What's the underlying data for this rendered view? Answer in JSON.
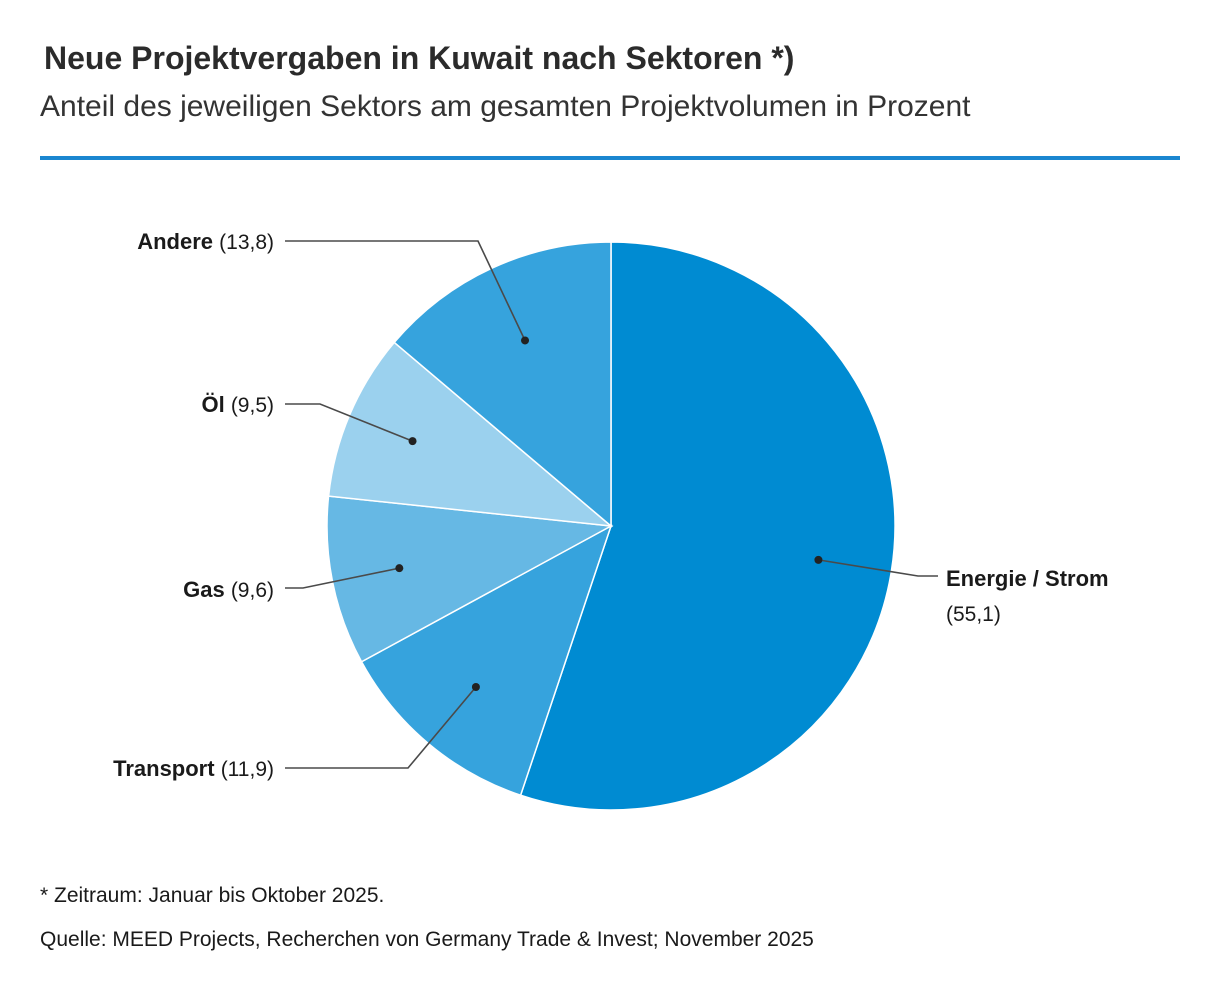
{
  "header": {
    "title": "Neue Projektvergaben in Kuwait nach Sektoren *)",
    "subtitle": "Anteil des jeweiligen Sektors am gesamten Projektvolumen in Prozent"
  },
  "colors": {
    "rule": "#1a86d0",
    "leader": "#4a4a4a",
    "slice_border": "#ffffff"
  },
  "chart_data": {
    "type": "pie",
    "start_angle": "12 o'clock",
    "direction": "clockwise",
    "slices": [
      {
        "label": "Energie / Strom",
        "value": 55.1,
        "value_text": "(55,1)",
        "color": "#008bd2"
      },
      {
        "label": "Transport",
        "value": 11.9,
        "value_text": "(11,9)",
        "color": "#36a3dd"
      },
      {
        "label": "Gas",
        "value": 9.6,
        "value_text": "(9,6)",
        "color": "#66b8e4"
      },
      {
        "label": "Öl",
        "value": 9.5,
        "value_text": "(9,5)",
        "color": "#9bd1ee"
      },
      {
        "label": "Andere",
        "value": 13.8,
        "value_text": "(13,8)",
        "color": "#36a3dd"
      }
    ]
  },
  "footer": {
    "footnote": "* Zeitraum: Januar bis Oktober 2025.",
    "source": "Quelle: MEED Projects, Recherchen von Germany Trade & Invest; November 2025"
  }
}
